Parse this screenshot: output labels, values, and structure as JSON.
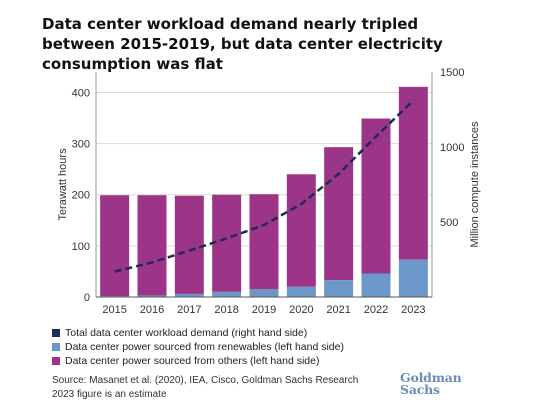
{
  "title": "Data center workload demand nearly tripled between 2015-2019, but data center electricity consumption was flat",
  "chart_data": {
    "type": "bar",
    "categories": [
      "2015",
      "2016",
      "2017",
      "2018",
      "2019",
      "2020",
      "2021",
      "2022",
      "2023"
    ],
    "series": [
      {
        "name": "Data center power sourced from renewables (left hand side)",
        "type": "bar",
        "stack": "power",
        "color": "#6b98c9",
        "values": [
          2,
          3,
          6,
          10,
          15,
          20,
          33,
          46,
          73
        ]
      },
      {
        "name": "Data center power sourced from others (left hand side)",
        "type": "bar",
        "stack": "power",
        "color": "#9c3587",
        "values": [
          197,
          196,
          192,
          190,
          186,
          220,
          260,
          303,
          338
        ]
      },
      {
        "name": "Total data center workload demand (right hand side)",
        "type": "line",
        "axis": "right",
        "color": "#1e2a5a",
        "values": [
          170,
          230,
          310,
          390,
          480,
          620,
          820,
          1070,
          1310
        ]
      }
    ],
    "ylabel": "Terawatt hours",
    "ylabel_right": "Million compute instances",
    "ylim": [
      0,
      440
    ],
    "ylim_right": [
      0,
      1500
    ],
    "yticks": [
      0,
      100,
      200,
      300,
      400
    ],
    "yticks_right": [
      500,
      1000,
      1500
    ],
    "grid": true
  },
  "legend": [
    {
      "label": "Total data center workload demand (right hand side)",
      "color": "#1e2a5a"
    },
    {
      "label": "Data center power sourced from renewables (left hand side)",
      "color": "#6b98c9"
    },
    {
      "label": "Data center power sourced from others (left hand side)",
      "color": "#9c3587"
    }
  ],
  "source": "Source: Masanet et al. (2020), IEA, Cisco, Goldman Sachs Research",
  "note": "2023 figure is an estimate",
  "logo": {
    "line1": "Goldman",
    "line2": "Sachs"
  }
}
